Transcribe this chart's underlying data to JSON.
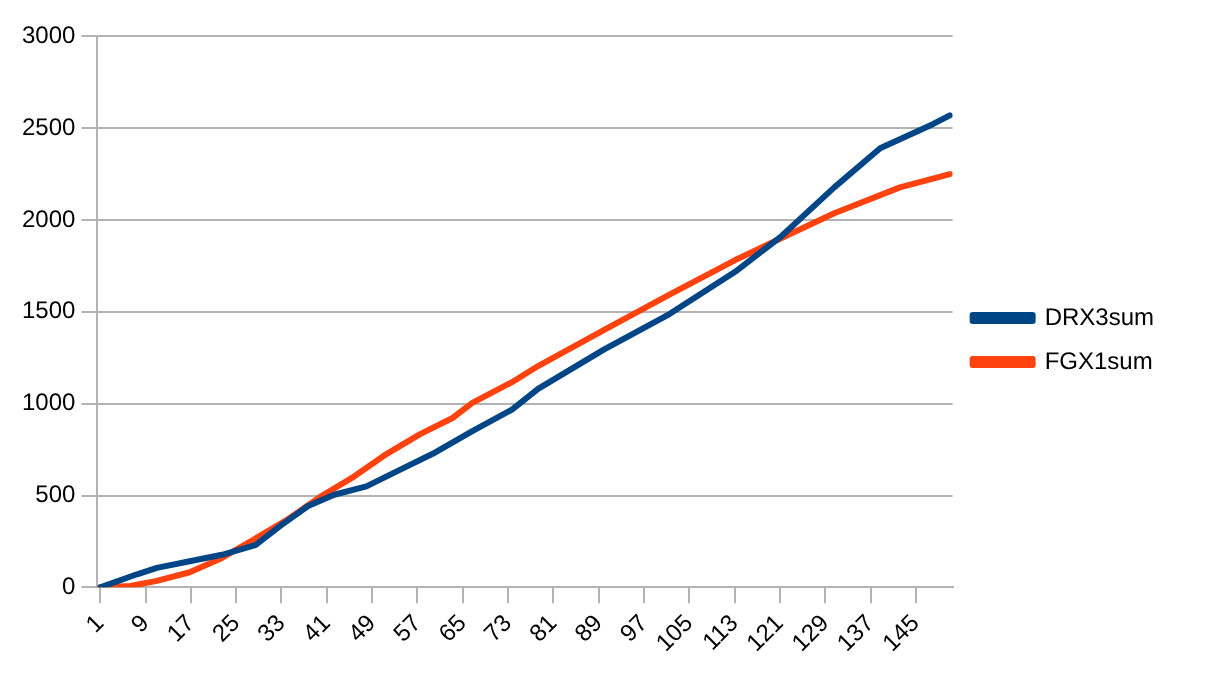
{
  "chart_data": {
    "type": "line",
    "xlim": [
      0.5,
      151.5
    ],
    "xticks": [
      1,
      9,
      17,
      25,
      33,
      41,
      49,
      57,
      65,
      73,
      81,
      89,
      97,
      105,
      113,
      121,
      129,
      137,
      145
    ],
    "ylim": [
      0,
      3000
    ],
    "yticks": [
      0,
      500,
      1000,
      1500,
      2000,
      2500,
      3000
    ],
    "grid": "y",
    "legend": "right",
    "marker": "none",
    "line_style": "solid",
    "series": [
      {
        "name": "DRX3sum",
        "color": "#004586",
        "x": [
          1,
          7.5,
          11,
          16.8,
          22.5,
          28.4,
          32.9,
          37.7,
          42.3,
          48,
          53.8,
          59.7,
          66.7,
          73.7,
          78.3,
          89.9,
          101.5,
          113.1,
          121.3,
          130.6,
          138.7,
          148,
          151
        ],
        "values": [
          0,
          71,
          106,
          142,
          177,
          230,
          337,
          443,
          504,
          550,
          638,
          727,
          851,
          968,
          1081,
          1294,
          1488,
          1718,
          1913,
          2178,
          2391,
          2522,
          2570
        ]
      },
      {
        "name": "FGX1sum",
        "color": "#ff420e",
        "x": [
          1,
          6.3,
          11,
          16.8,
          22.5,
          28.4,
          34.2,
          40,
          45.8,
          51.6,
          57.4,
          63.2,
          66.7,
          73.7,
          78.3,
          89.9,
          101.5,
          113.1,
          121.3,
          130.6,
          142.2,
          151
        ],
        "values": [
          0,
          7,
          35,
          82,
          160,
          266,
          372,
          496,
          603,
          727,
          833,
          922,
          1004,
          1117,
          1205,
          1400,
          1594,
          1782,
          1902,
          2037,
          2178,
          2250
        ]
      }
    ]
  }
}
